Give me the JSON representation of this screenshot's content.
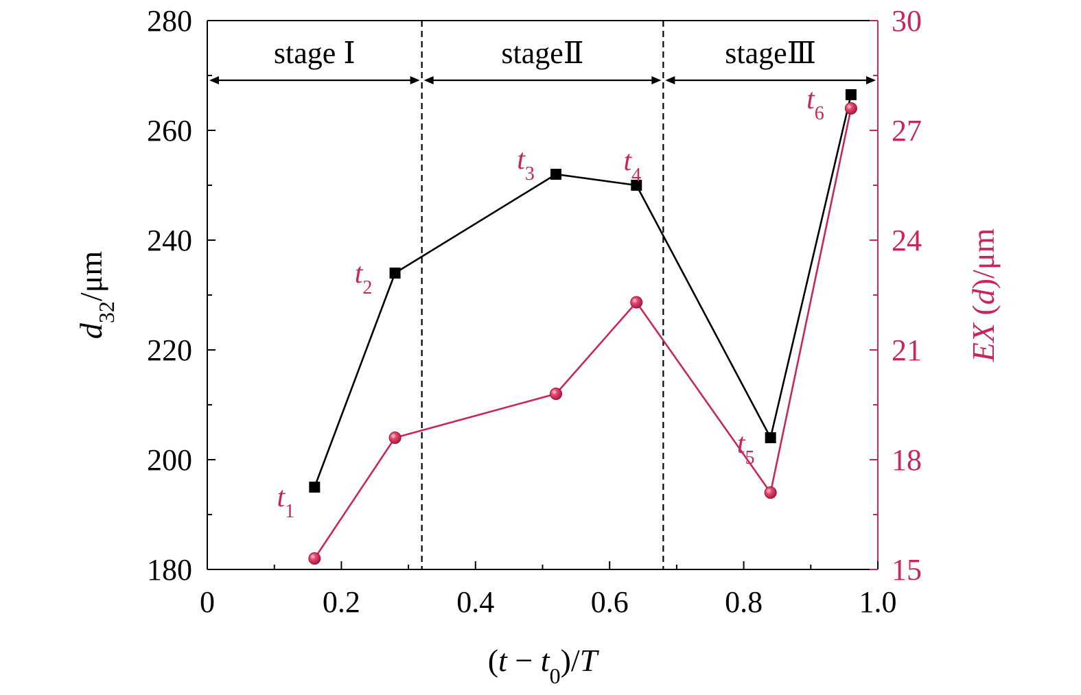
{
  "chart_data": {
    "type": "line",
    "x": [
      0.16,
      0.28,
      0.52,
      0.64,
      0.84,
      0.96
    ],
    "xlim": [
      0,
      1.0
    ],
    "xticks": [
      "0",
      "0.2",
      "0.4",
      "0.6",
      "0.8",
      "1.0"
    ],
    "xlabel": {
      "parts": [
        {
          "t": "(",
          "i": false,
          "sub": false
        },
        {
          "t": "t",
          "i": true,
          "sub": false
        },
        {
          "t": " − ",
          "i": false,
          "sub": false
        },
        {
          "t": "t",
          "i": true,
          "sub": false
        },
        {
          "t": "0",
          "i": false,
          "sub": true
        },
        {
          "t": ")/",
          "i": false,
          "sub": false
        },
        {
          "t": "T",
          "i": true,
          "sub": false
        }
      ]
    },
    "y_left": {
      "lim": [
        180,
        280
      ],
      "ticks": [
        "180",
        "200",
        "220",
        "240",
        "260",
        "280"
      ],
      "label": {
        "parts": [
          {
            "t": "d",
            "i": true,
            "sub": false
          },
          {
            "t": "32",
            "i": false,
            "sub": true
          },
          {
            "t": "/μm",
            "i": false,
            "sub": false
          }
        ]
      },
      "color": "#000000"
    },
    "y_right": {
      "lim": [
        15,
        30
      ],
      "ticks": [
        "15",
        "18",
        "21",
        "24",
        "27",
        "30"
      ],
      "label": {
        "parts": [
          {
            "t": "EX",
            "i": true,
            "sub": false
          },
          {
            "t": " (",
            "i": false,
            "sub": false
          },
          {
            "t": "d",
            "i": true,
            "sub": false
          },
          {
            "t": ")/μm",
            "i": false,
            "sub": false
          }
        ]
      },
      "color": "#c8265a"
    },
    "series": [
      {
        "axis": "left",
        "marker": "square",
        "color": "#000000",
        "values": [
          195,
          234,
          252,
          250,
          204,
          266.5
        ]
      },
      {
        "axis": "right",
        "marker": "circle",
        "color": "#c8265a",
        "values": [
          15.3,
          18.6,
          19.8,
          22.3,
          17.1,
          27.6
        ]
      }
    ],
    "point_labels": [
      {
        "base": "t",
        "sub": "1",
        "x": 0.16
      },
      {
        "base": "t",
        "sub": "2",
        "x": 0.28
      },
      {
        "base": "t",
        "sub": "3",
        "x": 0.52
      },
      {
        "base": "t",
        "sub": "4",
        "x": 0.64
      },
      {
        "base": "t",
        "sub": "5",
        "x": 0.84
      },
      {
        "base": "t",
        "sub": "6",
        "x": 0.96
      }
    ],
    "stage_boundaries": [
      0.32,
      0.68
    ],
    "stages": [
      {
        "label": "stage Ⅰ",
        "from": 0,
        "to": 0.32
      },
      {
        "label": "stageⅡ",
        "from": 0.32,
        "to": 0.68
      },
      {
        "label": "stageⅢ",
        "from": 0.68,
        "to": 1.0
      }
    ],
    "grid": false,
    "legend": "none"
  }
}
